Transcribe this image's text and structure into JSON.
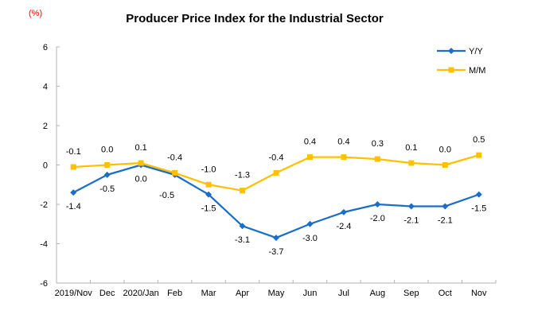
{
  "unit_label": "(%)",
  "chart_data": {
    "type": "line",
    "title": "Producer Price Index for the Industrial Sector",
    "categories": [
      "2019/Nov",
      "Dec",
      "2020/Jan",
      "Feb",
      "Mar",
      "Apr",
      "May",
      "Jun",
      "Jul",
      "Aug",
      "Sep",
      "Oct",
      "Nov"
    ],
    "series": [
      {
        "name": "Y/Y",
        "color": "#1B6EC8",
        "marker": "diamond",
        "label_position": "below",
        "values": [
          -1.4,
          -0.5,
          0.0,
          -0.5,
          -1.5,
          -3.1,
          -3.7,
          -3.0,
          -2.4,
          -2.0,
          -2.1,
          -2.1,
          -1.5
        ]
      },
      {
        "name": "M/M",
        "color": "#FFC000",
        "marker": "square",
        "label_position": "above",
        "values": [
          -0.1,
          0.0,
          0.1,
          -0.4,
          -1.0,
          -1.3,
          -0.4,
          0.4,
          0.4,
          0.3,
          0.1,
          0.0,
          0.5
        ]
      }
    ],
    "ylim": [
      -6,
      6
    ],
    "ytick_step": 2,
    "grid": false,
    "legend_position": "top-right",
    "axis_color": "#B3B3B3",
    "text_color": "#000000",
    "unit_color": "#FF0000"
  }
}
